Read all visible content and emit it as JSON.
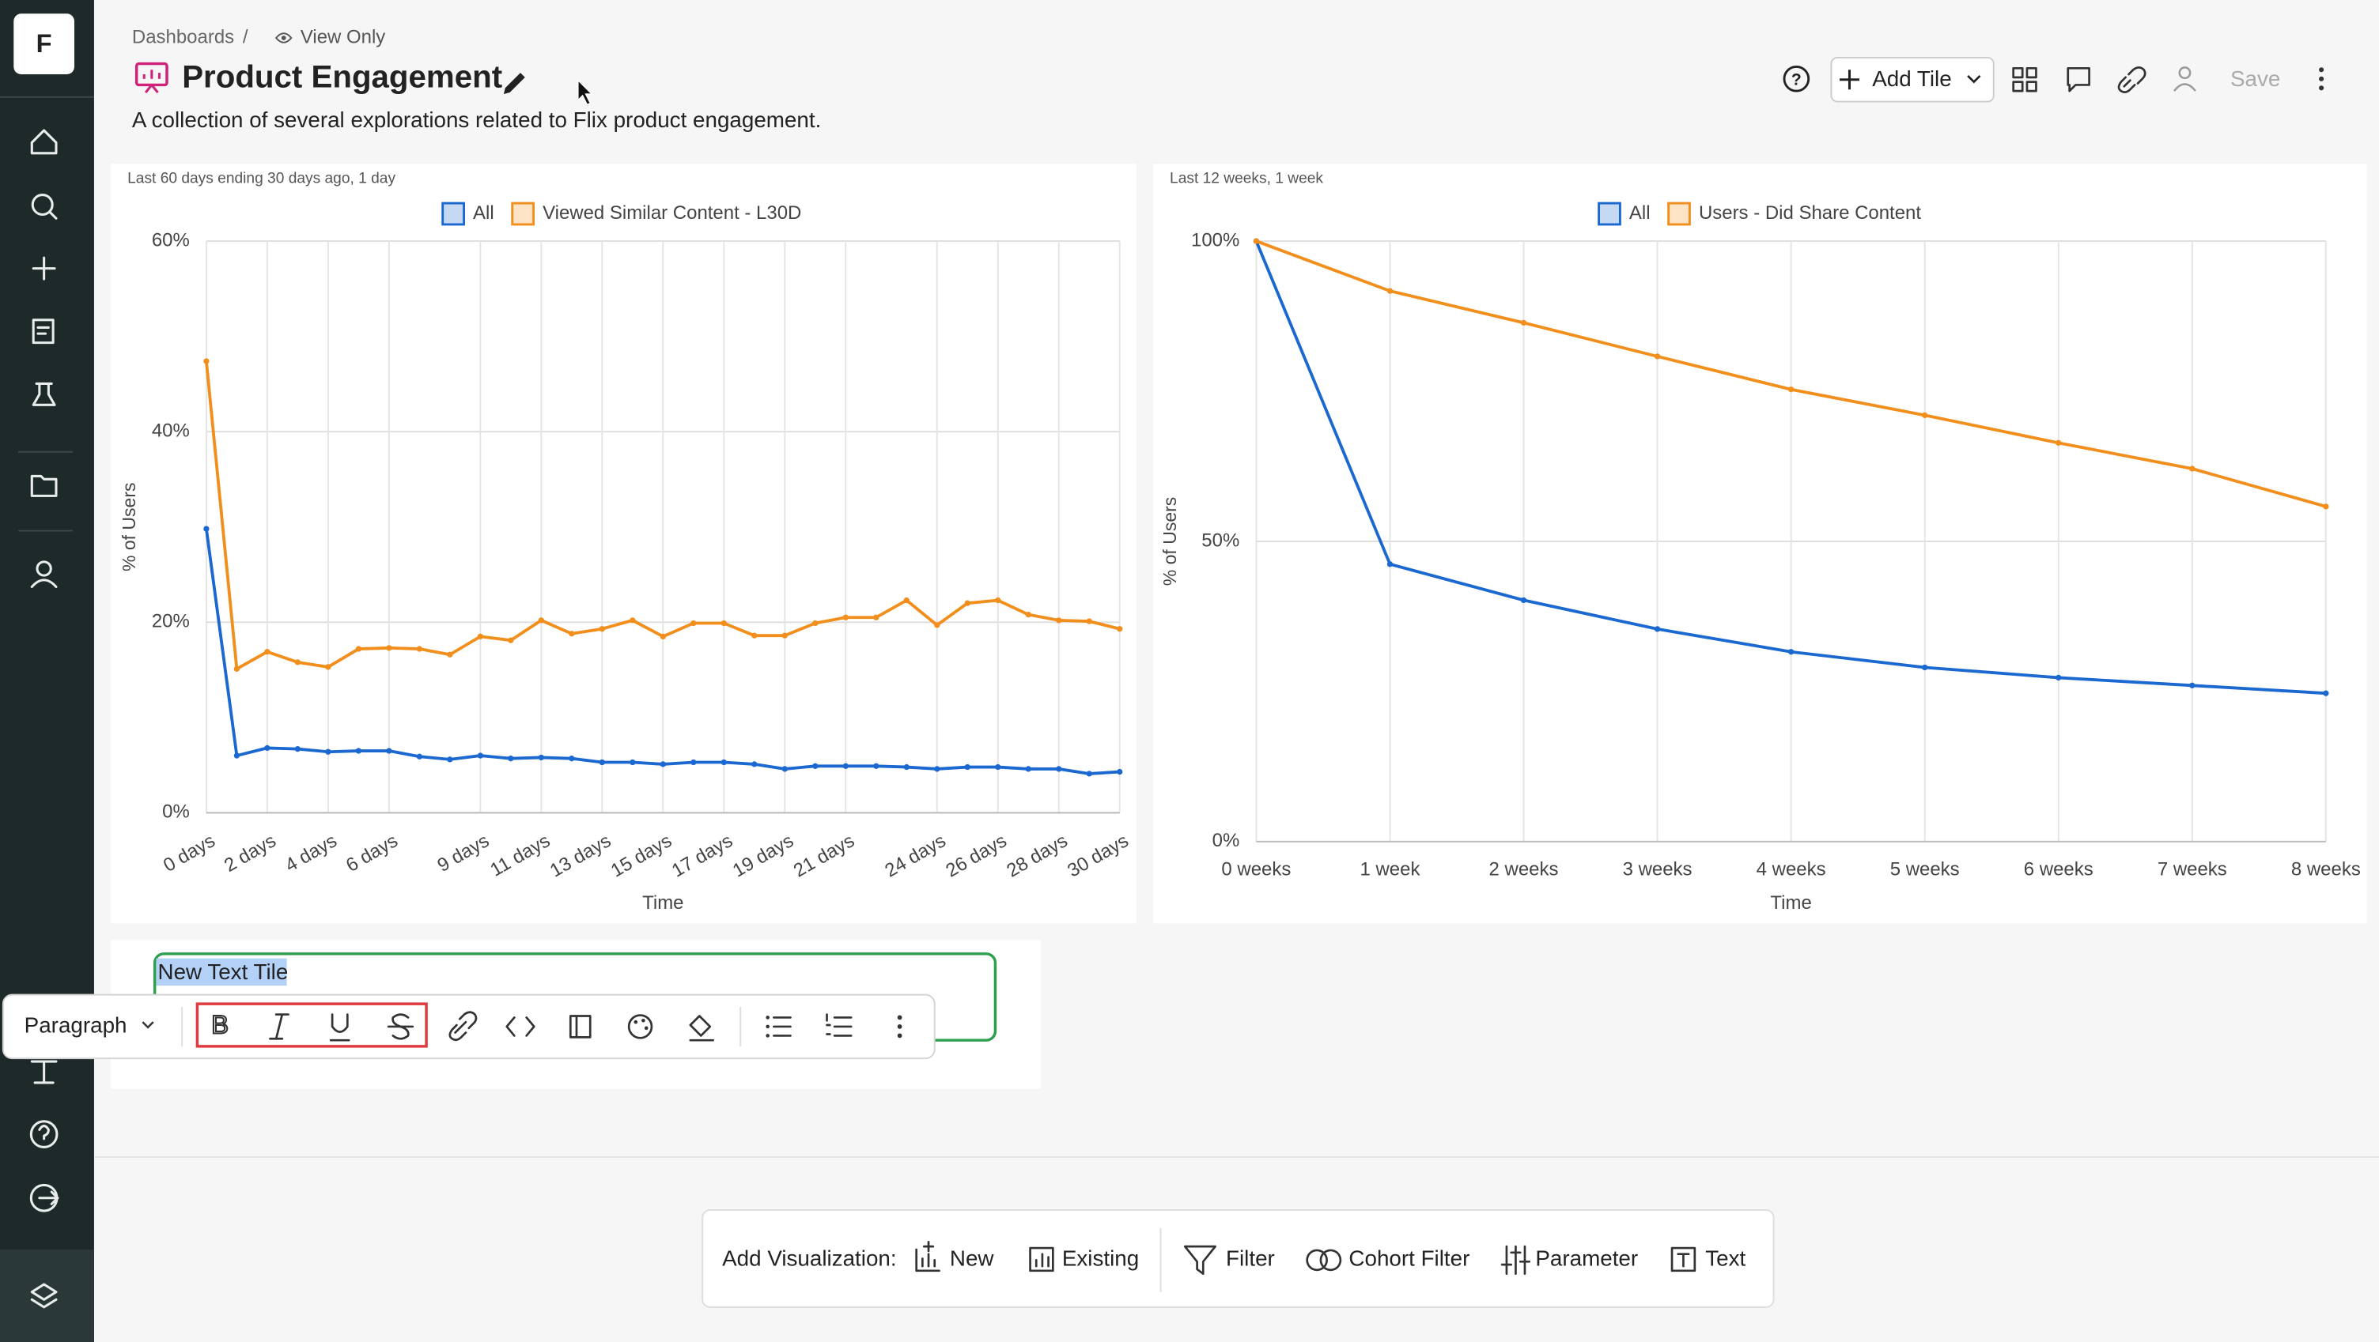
{
  "sidebar": {
    "logo": "F"
  },
  "header": {
    "breadcrumb": "Dashboards",
    "separator": "/",
    "view_only": "View Only",
    "title": "Product Engagement",
    "description": "A collection of several explorations related to Flix product engagement.",
    "add_tile": "Add Tile",
    "save": "Save"
  },
  "charts": [
    {
      "type": "line",
      "subtitle": "Last 60 days ending 30 days ago, 1 day",
      "ylabel": "% of Users",
      "xlabel": "Time",
      "categories": [
        "0 days",
        null,
        "2 days",
        null,
        "4 days",
        null,
        "6 days",
        null,
        null,
        "9 days",
        null,
        "11 days",
        null,
        "13 days",
        null,
        "15 days",
        null,
        "17 days",
        null,
        "19 days",
        null,
        "21 days",
        null,
        null,
        "24 days",
        null,
        "26 days",
        null,
        "28 days",
        null,
        "30 days"
      ],
      "series": [
        {
          "name": "All",
          "color": "#1a68d0",
          "values": [
            29.8,
            6.0,
            6.8,
            6.7,
            6.4,
            6.5,
            6.5,
            5.9,
            5.6,
            6.0,
            5.7,
            5.8,
            5.7,
            5.3,
            5.3,
            5.1,
            5.3,
            5.3,
            5.1,
            4.6,
            4.9,
            4.9,
            4.9,
            4.8,
            4.6,
            4.8,
            4.8,
            4.6,
            4.6,
            4.1,
            4.3
          ]
        },
        {
          "name": "Viewed Similar Content - L30D",
          "color": "#f28e1c",
          "values": [
            47.4,
            15.1,
            16.9,
            15.8,
            15.3,
            17.2,
            17.3,
            17.2,
            16.6,
            18.5,
            18.1,
            20.2,
            18.8,
            19.3,
            20.2,
            18.5,
            19.9,
            19.9,
            18.6,
            18.6,
            19.9,
            20.5,
            20.5,
            22.3,
            19.7,
            22.0,
            22.3,
            20.8,
            20.2,
            20.1,
            19.3
          ]
        }
      ],
      "ylim": [
        0,
        60
      ],
      "yticks": [
        {
          "value": 0,
          "label": "0%"
        },
        {
          "value": 20,
          "label": "20%"
        },
        {
          "value": 40,
          "label": "40%"
        },
        {
          "value": 60,
          "label": "60%"
        }
      ],
      "grid": true
    },
    {
      "type": "line",
      "subtitle": "Last 12 weeks, 1 week",
      "ylabel": "% of Users",
      "xlabel": "Time",
      "categories": [
        "0 weeks",
        "1 week",
        "2 weeks",
        "3 weeks",
        "4 weeks",
        "5 weeks",
        "6 weeks",
        "7 weeks",
        "8 weeks"
      ],
      "series": [
        {
          "name": "All",
          "color": "#1a68d0",
          "values": [
            100,
            46.2,
            40.2,
            35.4,
            31.6,
            29.0,
            27.3,
            26.0,
            24.7
          ]
        },
        {
          "name": "Users - Did Share Content",
          "color": "#f28e1c",
          "values": [
            100,
            91.7,
            86.4,
            80.8,
            75.3,
            71.0,
            66.4,
            62.1,
            55.8
          ]
        }
      ],
      "ylim": [
        0,
        100
      ],
      "yticks": [
        {
          "value": 0,
          "label": "0%"
        },
        {
          "value": 50,
          "label": "50%"
        },
        {
          "value": 100,
          "label": "100%"
        }
      ],
      "grid": true
    }
  ],
  "text_tile": {
    "text": "New Text Tile"
  },
  "toolbar": {
    "block_type": "Paragraph"
  },
  "add_bar": {
    "label": "Add Visualization:",
    "items": [
      "New",
      "Existing",
      "Filter",
      "Cohort Filter",
      "Parameter",
      "Text"
    ]
  }
}
